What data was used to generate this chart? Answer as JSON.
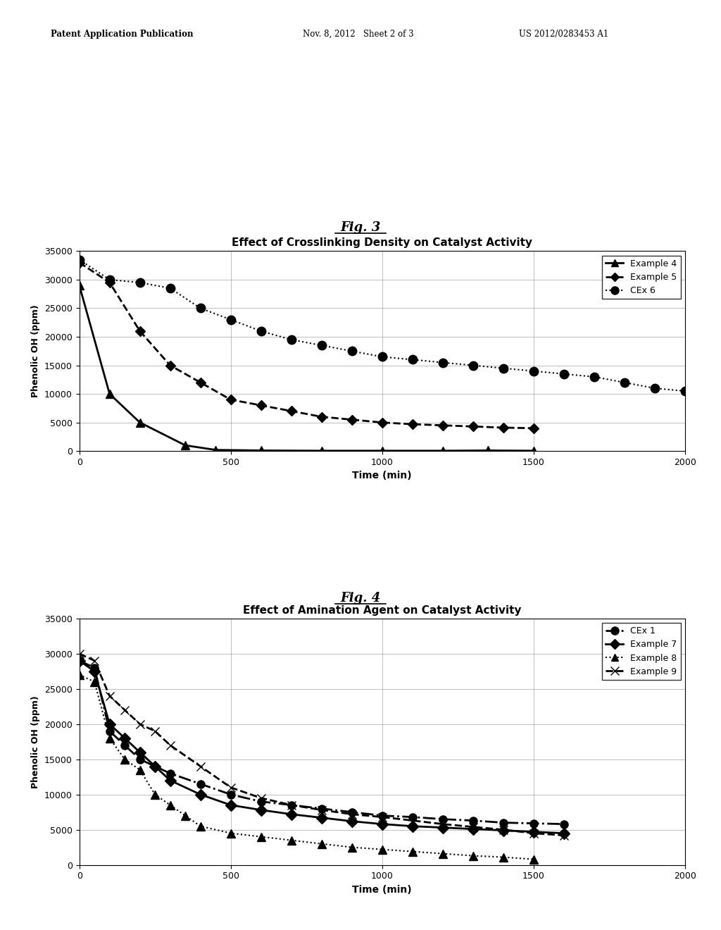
{
  "fig3": {
    "title": "Effect of Crosslinking Density on Catalyst Activity",
    "xlabel": "Time (min)",
    "ylabel": "Phenolic OH (ppm)",
    "xlim": [
      0,
      2000
    ],
    "ylim": [
      0,
      35000
    ],
    "yticks": [
      0,
      5000,
      10000,
      15000,
      20000,
      25000,
      30000,
      35000
    ],
    "xticks": [
      0,
      500,
      1000,
      1500,
      2000
    ],
    "series": [
      {
        "label": "Example 4",
        "x": [
          0,
          100,
          200,
          350,
          450,
          600,
          800,
          1000,
          1200,
          1350,
          1500
        ],
        "y": [
          29000,
          10000,
          5000,
          1000,
          200,
          100,
          50,
          50,
          50,
          100,
          50
        ],
        "linestyle": "-",
        "marker": "^",
        "markersize": 8,
        "linewidth": 2,
        "color": "#000000"
      },
      {
        "label": "Example 5",
        "x": [
          0,
          100,
          200,
          300,
          400,
          500,
          600,
          700,
          800,
          900,
          1000,
          1100,
          1200,
          1300,
          1400,
          1500
        ],
        "y": [
          33000,
          29500,
          21000,
          15000,
          12000,
          9000,
          8000,
          7000,
          6000,
          5500,
          5000,
          4700,
          4500,
          4300,
          4100,
          4000
        ],
        "linestyle": "--",
        "marker": "D",
        "markersize": 7,
        "linewidth": 2,
        "color": "#000000"
      },
      {
        "label": "CEx 6",
        "x": [
          0,
          100,
          200,
          300,
          400,
          500,
          600,
          700,
          800,
          900,
          1000,
          1100,
          1200,
          1300,
          1400,
          1500,
          1600,
          1700,
          1800,
          1900,
          2000
        ],
        "y": [
          33500,
          30000,
          29500,
          28500,
          25000,
          23000,
          21000,
          19500,
          18500,
          17500,
          16500,
          16000,
          15500,
          15000,
          14500,
          14000,
          13500,
          13000,
          12000,
          11000,
          10500
        ],
        "linestyle": ":",
        "marker": "o",
        "markersize": 9,
        "linewidth": 1.5,
        "color": "#000000"
      }
    ]
  },
  "fig4": {
    "title": "Effect of Amination Agent on Catalyst Activity",
    "xlabel": "Time (min)",
    "ylabel": "Phenolic OH (ppm)",
    "xlim": [
      0,
      2000
    ],
    "ylim": [
      0,
      35000
    ],
    "yticks": [
      0,
      5000,
      10000,
      15000,
      20000,
      25000,
      30000,
      35000
    ],
    "xticks": [
      0,
      500,
      1000,
      1500,
      2000
    ],
    "series": [
      {
        "label": "CEx 1",
        "x": [
          0,
          50,
          100,
          150,
          200,
          250,
          300,
          400,
          500,
          600,
          700,
          800,
          900,
          1000,
          1100,
          1200,
          1300,
          1400,
          1500,
          1600
        ],
        "y": [
          29000,
          28000,
          19000,
          17000,
          15000,
          14000,
          13000,
          11500,
          10000,
          9000,
          8500,
          8000,
          7500,
          7000,
          6800,
          6500,
          6300,
          6000,
          5900,
          5800
        ],
        "linestyle": "-.",
        "marker": "o",
        "markersize": 8,
        "linewidth": 2,
        "color": "#000000"
      },
      {
        "label": "Example 7",
        "x": [
          0,
          50,
          100,
          150,
          200,
          250,
          300,
          400,
          500,
          600,
          700,
          800,
          900,
          1000,
          1100,
          1200,
          1300,
          1400,
          1500,
          1600
        ],
        "y": [
          29000,
          27500,
          20000,
          18000,
          16000,
          14000,
          12000,
          10000,
          8500,
          7800,
          7200,
          6700,
          6200,
          5800,
          5500,
          5300,
          5100,
          4900,
          4700,
          4500
        ],
        "linestyle": "-",
        "marker": "D",
        "markersize": 8,
        "linewidth": 2,
        "color": "#000000"
      },
      {
        "label": "Example 8",
        "x": [
          0,
          50,
          100,
          150,
          200,
          250,
          300,
          350,
          400,
          500,
          600,
          700,
          800,
          900,
          1000,
          1100,
          1200,
          1300,
          1400,
          1500
        ],
        "y": [
          27000,
          26000,
          18000,
          15000,
          13500,
          10000,
          8500,
          7000,
          5500,
          4500,
          4000,
          3500,
          3000,
          2500,
          2200,
          1900,
          1600,
          1300,
          1100,
          800
        ],
        "linestyle": ":",
        "marker": "^",
        "markersize": 8,
        "linewidth": 1.5,
        "color": "#000000"
      },
      {
        "label": "Example 9",
        "x": [
          0,
          50,
          100,
          150,
          200,
          250,
          300,
          400,
          500,
          600,
          700,
          800,
          900,
          1000,
          1100,
          1200,
          1300,
          1400,
          1500,
          1600
        ],
        "y": [
          30000,
          29000,
          24000,
          22000,
          20000,
          19000,
          17000,
          14000,
          11000,
          9500,
          8500,
          7800,
          7200,
          6800,
          6300,
          5800,
          5400,
          5000,
          4500,
          4200
        ],
        "linestyle": "--",
        "marker": "x",
        "markersize": 9,
        "linewidth": 2,
        "color": "#000000"
      }
    ]
  },
  "header_left": "Patent Application Publication",
  "header_mid": "Nov. 8, 2012   Sheet 2 of 3",
  "header_right": "US 2012/0283453 A1",
  "fig3_label": "Fig. 3",
  "fig4_label": "Fig. 4",
  "background_color": "#ffffff"
}
